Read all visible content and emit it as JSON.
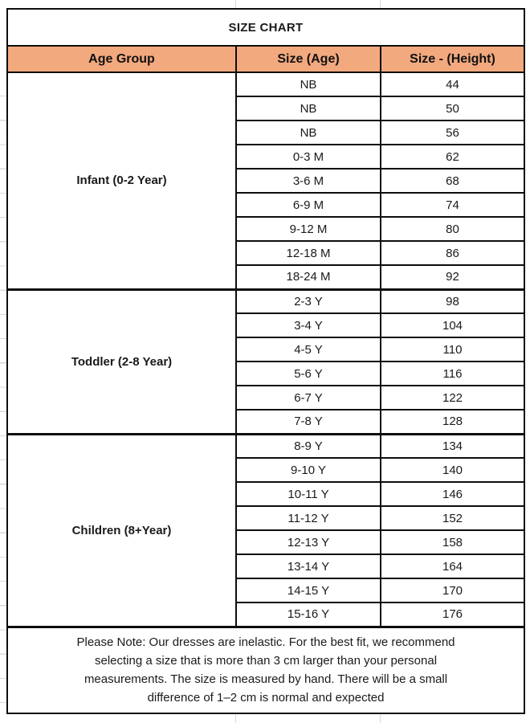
{
  "table": {
    "title": "SIZE CHART",
    "columns": [
      "Age Group",
      "Size (Age)",
      "Size - (Height)"
    ],
    "groups": [
      {
        "label": "Infant (0-2 Year)",
        "rows": [
          {
            "size": "NB",
            "height": "44"
          },
          {
            "size": "NB",
            "height": "50"
          },
          {
            "size": "NB",
            "height": "56"
          },
          {
            "size": "0-3 M",
            "height": "62"
          },
          {
            "size": "3-6 M",
            "height": "68"
          },
          {
            "size": "6-9 M",
            "height": "74"
          },
          {
            "size": "9-12 M",
            "height": "80"
          },
          {
            "size": "12-18 M",
            "height": "86"
          },
          {
            "size": "18-24 M",
            "height": "92"
          }
        ]
      },
      {
        "label": "Toddler (2-8 Year)",
        "rows": [
          {
            "size": "2-3 Y",
            "height": "98"
          },
          {
            "size": "3-4 Y",
            "height": "104"
          },
          {
            "size": "4-5 Y",
            "height": "110"
          },
          {
            "size": "5-6 Y",
            "height": "116"
          },
          {
            "size": "6-7 Y",
            "height": "122"
          },
          {
            "size": "7-8 Y",
            "height": "128"
          }
        ]
      },
      {
        "label": "Children (8+Year)",
        "rows": [
          {
            "size": "8-9 Y",
            "height": "134"
          },
          {
            "size": "9-10 Y",
            "height": "140"
          },
          {
            "size": "10-11 Y",
            "height": "146"
          },
          {
            "size": "11-12 Y",
            "height": "152"
          },
          {
            "size": "12-13 Y",
            "height": "158"
          },
          {
            "size": "13-14 Y",
            "height": "164"
          },
          {
            "size": "14-15 Y",
            "height": "170"
          },
          {
            "size": "15-16 Y",
            "height": "176"
          }
        ]
      }
    ],
    "note": "Please Note: Our dresses are inelastic. For the best fit, we recommend selecting a size that is more than 3 cm larger than your personal measurements. The size is measured by hand. There will be a small difference of 1–2 cm is normal and expected"
  },
  "colors": {
    "header_bg": "#F2A97E",
    "border": "#0D0D0D",
    "gridline": "#D9D9D9",
    "text": "#1A1A1A"
  },
  "chart_data": {
    "type": "table",
    "title": "SIZE CHART",
    "columns": [
      "Age Group",
      "Size (Age)",
      "Size - (Height)"
    ],
    "rows": [
      [
        "Infant (0-2 Year)",
        "NB",
        44
      ],
      [
        "Infant (0-2 Year)",
        "NB",
        50
      ],
      [
        "Infant (0-2 Year)",
        "NB",
        56
      ],
      [
        "Infant (0-2 Year)",
        "0-3 M",
        62
      ],
      [
        "Infant (0-2 Year)",
        "3-6 M",
        68
      ],
      [
        "Infant (0-2 Year)",
        "6-9 M",
        74
      ],
      [
        "Infant (0-2 Year)",
        "9-12 M",
        80
      ],
      [
        "Infant (0-2 Year)",
        "12-18 M",
        86
      ],
      [
        "Infant (0-2 Year)",
        "18-24 M",
        92
      ],
      [
        "Toddler (2-8 Year)",
        "2-3 Y",
        98
      ],
      [
        "Toddler (2-8 Year)",
        "3-4 Y",
        104
      ],
      [
        "Toddler (2-8 Year)",
        "4-5 Y",
        110
      ],
      [
        "Toddler (2-8 Year)",
        "5-6 Y",
        116
      ],
      [
        "Toddler (2-8 Year)",
        "6-7 Y",
        122
      ],
      [
        "Toddler (2-8 Year)",
        "7-8 Y",
        128
      ],
      [
        "Children (8+Year)",
        "8-9 Y",
        134
      ],
      [
        "Children (8+Year)",
        "9-10 Y",
        140
      ],
      [
        "Children (8+Year)",
        "10-11 Y",
        146
      ],
      [
        "Children (8+Year)",
        "11-12 Y",
        152
      ],
      [
        "Children (8+Year)",
        "12-13 Y",
        158
      ],
      [
        "Children (8+Year)",
        "13-14 Y",
        164
      ],
      [
        "Children (8+Year)",
        "14-15 Y",
        170
      ],
      [
        "Children (8+Year)",
        "15-16 Y",
        176
      ]
    ],
    "note": "Please Note: Our dresses are inelastic. For the best fit, we recommend selecting a size that is more than 3 cm larger than your personal measurements. The size is measured by hand. There will be a small difference of 1–2 cm is normal and expected"
  }
}
